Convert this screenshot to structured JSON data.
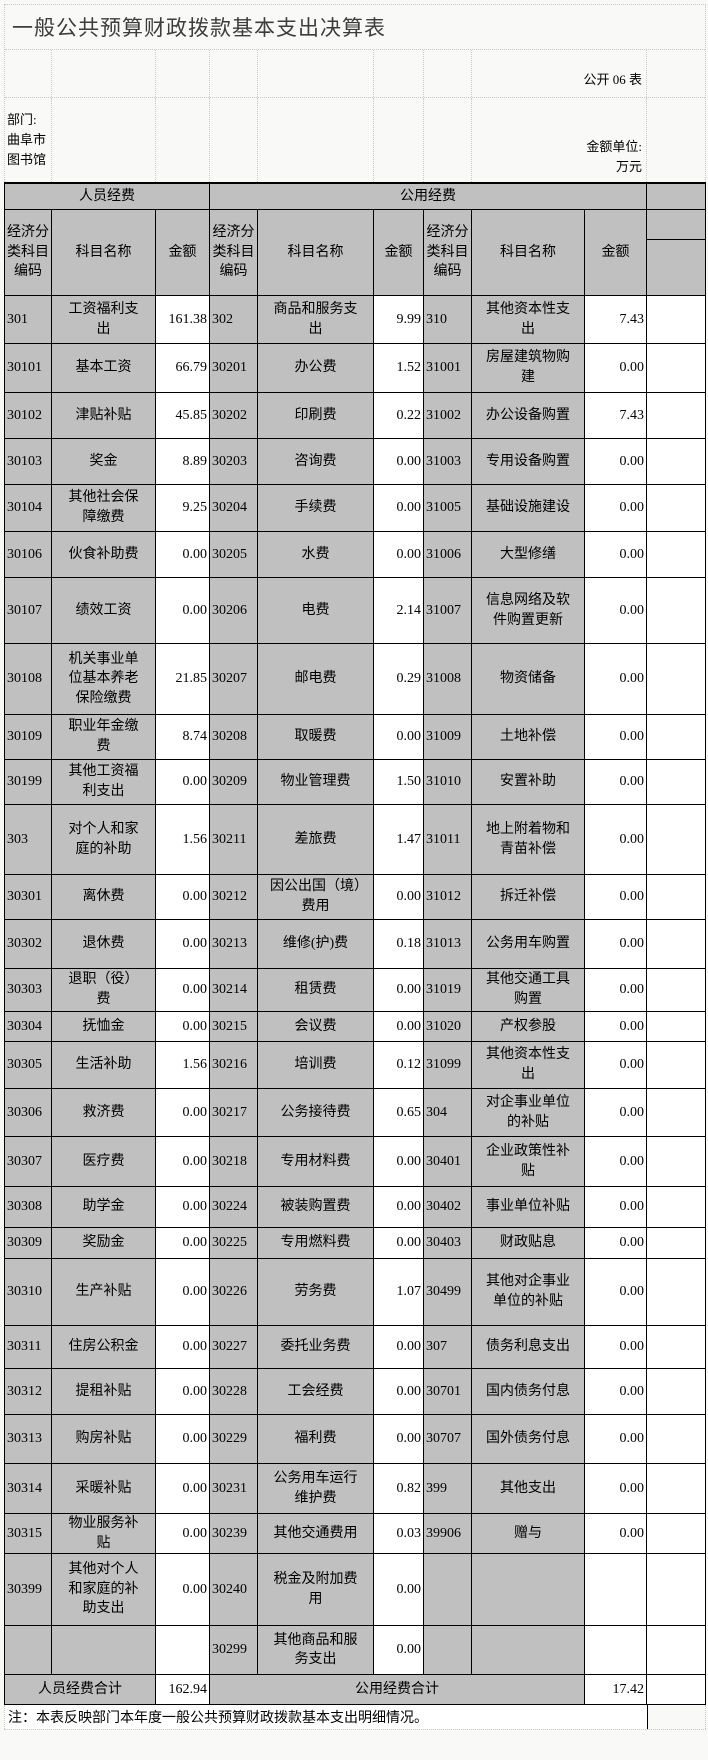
{
  "title": "一般公共预算财政拨款基本支出决算表",
  "meta": {
    "table_code": "公开 06 表",
    "department_label": "部门:",
    "department_name": "曲阜市图书馆",
    "unit_label": "金额单位:",
    "unit_value": "万元"
  },
  "table": {
    "group_headers": [
      "人员经费",
      "公用经费"
    ],
    "column_headers": [
      "经济分类科目编码",
      "科目名称",
      "金额"
    ],
    "rows": [
      [
        "301",
        "工资福利支出",
        "161.38",
        "302",
        "商品和服务支出",
        "9.99",
        "310",
        "其他资本性支出",
        "7.43"
      ],
      [
        "30101",
        "基本工资",
        "66.79",
        "30201",
        "办公费",
        "1.52",
        "31001",
        "房屋建筑物购建",
        "0.00"
      ],
      [
        "30102",
        "津贴补贴",
        "45.85",
        "30202",
        "印刷费",
        "0.22",
        "31002",
        "办公设备购置",
        "7.43"
      ],
      [
        "30103",
        "奖金",
        "8.89",
        "30203",
        "咨询费",
        "0.00",
        "31003",
        "专用设备购置",
        "0.00"
      ],
      [
        "30104",
        "其他社会保障缴费",
        "9.25",
        "30204",
        "手续费",
        "0.00",
        "31005",
        "基础设施建设",
        "0.00"
      ],
      [
        "30106",
        "伙食补助费",
        "0.00",
        "30205",
        "水费",
        "0.00",
        "31006",
        "大型修缮",
        "0.00"
      ],
      [
        "30107",
        "绩效工资",
        "0.00",
        "30206",
        "电费",
        "2.14",
        "31007",
        "信息网络及软件购置更新",
        "0.00"
      ],
      [
        "30108",
        "机关事业单位基本养老保险缴费",
        "21.85",
        "30207",
        "邮电费",
        "0.29",
        "31008",
        "物资储备",
        "0.00"
      ],
      [
        "30109",
        "职业年金缴费",
        "8.74",
        "30208",
        "取暖费",
        "0.00",
        "31009",
        "土地补偿",
        "0.00"
      ],
      [
        "30199",
        "其他工资福利支出",
        "0.00",
        "30209",
        "物业管理费",
        "1.50",
        "31010",
        "安置补助",
        "0.00"
      ],
      [
        "303",
        "对个人和家庭的补助",
        "1.56",
        "30211",
        "差旅费",
        "1.47",
        "31011",
        "地上附着物和青苗补偿",
        "0.00"
      ],
      [
        "30301",
        "离休费",
        "0.00",
        "30212",
        "因公出国（境）费用",
        "0.00",
        "31012",
        "拆迁补偿",
        "0.00"
      ],
      [
        "30302",
        "退休费",
        "0.00",
        "30213",
        "维修(护)费",
        "0.18",
        "31013",
        "公务用车购置",
        "0.00"
      ],
      [
        "30303",
        "退职（役）费",
        "0.00",
        "30214",
        "租赁费",
        "0.00",
        "31019",
        "其他交通工具购置",
        "0.00"
      ],
      [
        "30304",
        "抚恤金",
        "0.00",
        "30215",
        "会议费",
        "0.00",
        "31020",
        "产权参股",
        "0.00"
      ],
      [
        "30305",
        "生活补助",
        "1.56",
        "30216",
        "培训费",
        "0.12",
        "31099",
        "其他资本性支出",
        "0.00"
      ],
      [
        "30306",
        "救济费",
        "0.00",
        "30217",
        "公务接待费",
        "0.65",
        "304",
        "对企事业单位的补贴",
        "0.00"
      ],
      [
        "30307",
        "医疗费",
        "0.00",
        "30218",
        "专用材料费",
        "0.00",
        "30401",
        "企业政策性补贴",
        "0.00"
      ],
      [
        "30308",
        "助学金",
        "0.00",
        "30224",
        "被装购置费",
        "0.00",
        "30402",
        "事业单位补贴",
        "0.00"
      ],
      [
        "30309",
        "奖励金",
        "0.00",
        "30225",
        "专用燃料费",
        "0.00",
        "30403",
        "财政贴息",
        "0.00"
      ],
      [
        "30310",
        "生产补贴",
        "0.00",
        "30226",
        "劳务费",
        "1.07",
        "30499",
        "其他对企事业单位的补贴",
        "0.00"
      ],
      [
        "30311",
        "住房公积金",
        "0.00",
        "30227",
        "委托业务费",
        "0.00",
        "307",
        "债务利息支出",
        "0.00"
      ],
      [
        "30312",
        "提租补贴",
        "0.00",
        "30228",
        "工会经费",
        "0.00",
        "30701",
        "国内债务付息",
        "0.00"
      ],
      [
        "30313",
        "购房补贴",
        "0.00",
        "30229",
        "福利费",
        "0.00",
        "30707",
        "国外债务付息",
        "0.00"
      ],
      [
        "30314",
        "采暖补贴",
        "0.00",
        "30231",
        "公务用车运行维护费",
        "0.82",
        "399",
        "其他支出",
        "0.00"
      ],
      [
        "30315",
        "物业服务补贴",
        "0.00",
        "30239",
        "其他交通费用",
        "0.03",
        "39906",
        "赠与",
        "0.00"
      ],
      [
        "30399",
        "其他对个人和家庭的补助支出",
        "0.00",
        "30240",
        "税金及附加费用",
        "0.00",
        "",
        "",
        ""
      ],
      [
        "",
        "",
        "",
        "30299",
        "其他商品和服务支出",
        "0.00",
        "",
        "",
        ""
      ]
    ],
    "summary": {
      "personnel_label": "人员经费合计",
      "personnel_total": "162.94",
      "public_label": "公用经费合计",
      "public_total": "17.42"
    },
    "note": "注：本表反映部门本年度一般公共预算财政拨款基本支出明细情况。"
  },
  "colors": {
    "header_bg": "#c0c0c0",
    "cell_bg": "#ffffff",
    "border": "#000000",
    "page_bg": "#f9f9f7",
    "grid_dotted": "#c9c9c9",
    "title_color": "#3d3d3d"
  }
}
